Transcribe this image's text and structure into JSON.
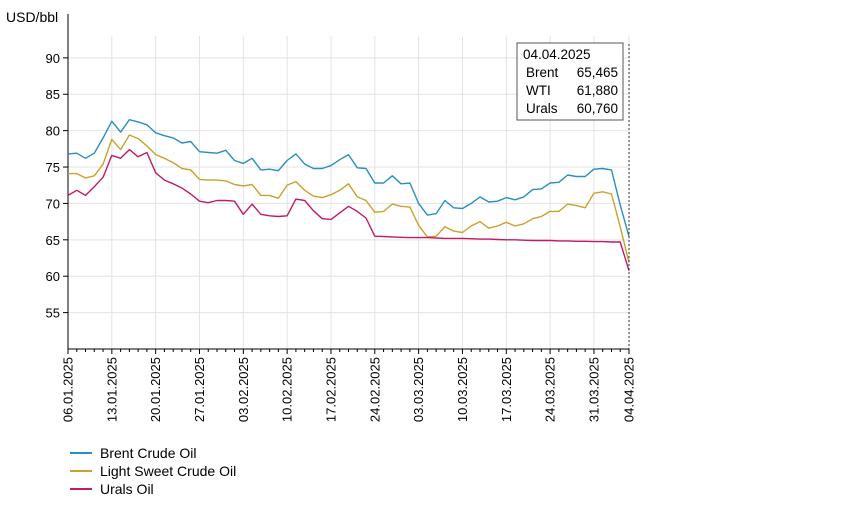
{
  "chart_data": {
    "type": "line",
    "ylabel": "USD/bbl",
    "ylim": [
      50,
      93
    ],
    "yticks": [
      55,
      60,
      65,
      70,
      75,
      80,
      85,
      90
    ],
    "x": [
      "06.01.2025",
      "07.01.2025",
      "08.01.2025",
      "09.01.2025",
      "10.01.2025",
      "13.01.2025",
      "14.01.2025",
      "15.01.2025",
      "16.01.2025",
      "17.01.2025",
      "20.01.2025",
      "21.01.2025",
      "22.01.2025",
      "23.01.2025",
      "24.01.2025",
      "27.01.2025",
      "28.01.2025",
      "29.01.2025",
      "30.01.2025",
      "31.01.2025",
      "03.02.2025",
      "04.02.2025",
      "05.02.2025",
      "06.02.2025",
      "07.02.2025",
      "10.02.2025",
      "11.02.2025",
      "12.02.2025",
      "13.02.2025",
      "14.02.2025",
      "17.02.2025",
      "18.02.2025",
      "19.02.2025",
      "20.02.2025",
      "21.02.2025",
      "24.02.2025",
      "25.02.2025",
      "26.02.2025",
      "27.02.2025",
      "28.02.2025",
      "03.03.2025",
      "04.03.2025",
      "05.03.2025",
      "06.03.2025",
      "07.03.2025",
      "10.03.2025",
      "11.03.2025",
      "12.03.2025",
      "13.03.2025",
      "14.03.2025",
      "17.03.2025",
      "18.03.2025",
      "19.03.2025",
      "20.03.2025",
      "21.03.2025",
      "24.03.2025",
      "25.03.2025",
      "26.03.2025",
      "27.03.2025",
      "28.03.2025",
      "31.03.2025",
      "01.04.2025",
      "02.04.2025",
      "03.04.2025",
      "04.04.2025"
    ],
    "xtick_labels": [
      "06.01.2025",
      "13.01.2025",
      "20.01.2025",
      "27.01.2025",
      "03.02.2025",
      "10.02.2025",
      "17.02.2025",
      "24.02.2025",
      "03.03.2025",
      "10.03.2025",
      "17.03.2025",
      "24.03.2025",
      "31.03.2025",
      "04.04.2025"
    ],
    "series": [
      {
        "name": "Brent Crude Oil",
        "color": "#2a8fc0",
        "values": [
          76.8,
          76.9,
          76.2,
          76.9,
          79.0,
          81.3,
          79.8,
          81.5,
          81.2,
          80.8,
          79.7,
          79.3,
          79.0,
          78.3,
          78.5,
          77.1,
          77.0,
          76.9,
          77.3,
          75.9,
          75.5,
          76.2,
          74.6,
          74.7,
          74.5,
          75.9,
          76.8,
          75.4,
          74.8,
          74.8,
          75.2,
          76.0,
          76.7,
          74.9,
          74.8,
          72.8,
          72.8,
          73.8,
          72.7,
          72.8,
          70.0,
          68.4,
          68.6,
          70.4,
          69.4,
          69.3,
          70.0,
          70.9,
          70.2,
          70.3,
          70.8,
          70.5,
          70.9,
          71.9,
          72.0,
          72.8,
          72.9,
          73.9,
          73.7,
          73.7,
          74.7,
          74.8,
          74.6,
          69.8,
          65.465
        ]
      },
      {
        "name": "Light Sweet Crude Oil",
        "color": "#c8a22c",
        "values": [
          74.1,
          74.1,
          73.5,
          73.8,
          75.4,
          78.8,
          77.4,
          79.4,
          78.9,
          77.9,
          76.7,
          76.2,
          75.6,
          74.8,
          74.6,
          73.3,
          73.2,
          73.2,
          73.1,
          72.6,
          72.4,
          72.6,
          71.1,
          71.1,
          70.7,
          72.5,
          73.0,
          71.8,
          71.0,
          70.8,
          71.2,
          71.8,
          72.7,
          70.9,
          70.4,
          68.8,
          68.9,
          69.9,
          69.6,
          69.5,
          67.0,
          65.4,
          65.5,
          66.8,
          66.2,
          66.0,
          66.9,
          67.5,
          66.6,
          66.9,
          67.4,
          66.9,
          67.2,
          67.9,
          68.2,
          68.9,
          68.9,
          69.9,
          69.7,
          69.4,
          71.4,
          71.6,
          71.3,
          66.8,
          61.88
        ]
      },
      {
        "name": "Urals Oil",
        "color": "#c01a68",
        "values": [
          71.1,
          71.8,
          71.1,
          72.3,
          73.6,
          76.6,
          76.2,
          77.4,
          76.4,
          77.0,
          74.2,
          73.2,
          72.7,
          72.1,
          71.3,
          70.3,
          70.1,
          70.4,
          70.4,
          70.3,
          68.5,
          69.9,
          68.5,
          68.3,
          68.2,
          68.3,
          70.6,
          70.4,
          69.0,
          67.9,
          67.8,
          68.7,
          69.6,
          68.9,
          68.0,
          65.5,
          65.45,
          65.4,
          65.35,
          65.3,
          65.3,
          65.3,
          65.25,
          65.2,
          65.2,
          65.2,
          65.15,
          65.1,
          65.1,
          65.05,
          65.0,
          65.0,
          64.95,
          64.9,
          64.9,
          64.9,
          64.85,
          64.85,
          64.8,
          64.8,
          64.75,
          64.75,
          64.7,
          64.7,
          60.76
        ]
      }
    ],
    "grid": true,
    "legend": "bottom-left"
  },
  "tooltip": {
    "date": "04.04.2025",
    "rows": [
      {
        "name": "Brent",
        "value": "65,465"
      },
      {
        "name": "WTI",
        "value": "61,880"
      },
      {
        "name": "Urals",
        "value": "60,760"
      }
    ]
  },
  "legend": [
    {
      "label": "Brent Crude Oil",
      "color": "#2a8fc0"
    },
    {
      "label": "Light Sweet Crude Oil",
      "color": "#c8a22c"
    },
    {
      "label": "Urals Oil",
      "color": "#c01a68"
    }
  ]
}
